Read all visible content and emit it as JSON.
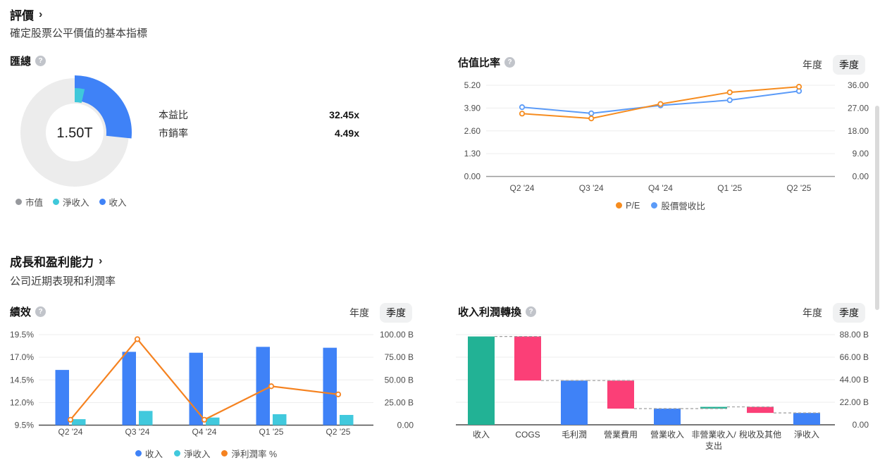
{
  "ui": {
    "help_glyph": "?",
    "tab_annual": "年度",
    "tab_quarterly": "季度",
    "active_tab": "季度"
  },
  "sections": [
    {
      "id": "valuation",
      "title": "評價",
      "chevron": "›",
      "subtitle": "確定股票公平價值的基本指標"
    },
    {
      "id": "growth",
      "title": "成長和盈利能力",
      "chevron": "›",
      "subtitle": "公司近期表現和利潤率"
    }
  ],
  "cards": {
    "summary": {
      "title": "匯總",
      "donut": {
        "center_label": "1.50T",
        "ring": {
          "name": "市值",
          "color": "#ececec"
        },
        "segments": [
          {
            "name": "收入",
            "color": "#3f82f7",
            "start_deg": 0,
            "end_deg": 96
          },
          {
            "name": "淨收入",
            "color": "#3fc8da",
            "start_deg": 0,
            "end_deg": 13
          }
        ]
      },
      "legend": [
        {
          "label": "市值",
          "color": "#97999d"
        },
        {
          "label": "淨收入",
          "color": "#3fc8da"
        },
        {
          "label": "收入",
          "color": "#3f82f7"
        }
      ],
      "metrics": [
        {
          "label": "本益比",
          "value": "32.45x"
        },
        {
          "label": "市銷率",
          "value": "4.49x"
        }
      ]
    }
  },
  "chart_data": [
    {
      "id": "valuation_ratios",
      "type": "line",
      "title": "估值比率",
      "categories": [
        "Q2 '24",
        "Q3 '24",
        "Q4 '24",
        "Q1 '25",
        "Q2 '25"
      ],
      "left_axis": {
        "min": 0,
        "max": 5.2,
        "tick_labels": [
          "5.20",
          "3.90",
          "2.60",
          "1.30",
          "0.00"
        ]
      },
      "right_axis": {
        "min": 0,
        "max": 36,
        "tick_labels": [
          "36.00",
          "27.00",
          "18.00",
          "9.00",
          "0.00"
        ]
      },
      "series": [
        {
          "name": "P/E",
          "color": "#f68c1f",
          "axis": "right",
          "values": [
            24.8,
            22.9,
            28.6,
            33.2,
            35.4
          ]
        },
        {
          "name": "股價營收比",
          "color": "#5b9bf8",
          "axis": "left",
          "values": [
            3.95,
            3.6,
            4.05,
            4.35,
            4.87
          ]
        }
      ],
      "legend_position": "bottom",
      "grid": true
    },
    {
      "id": "performance",
      "type": "bar",
      "title": "績效",
      "categories": [
        "Q2 '24",
        "Q3 '24",
        "Q4 '24",
        "Q1 '25",
        "Q2 '25"
      ],
      "left_axis": {
        "min": 9.5,
        "max": 19.5,
        "tick_labels": [
          "19.5%",
          "17.0%",
          "14.5%",
          "12.0%",
          "9.5%"
        ]
      },
      "right_axis": {
        "min": 0,
        "max": 100,
        "tick_labels": [
          "100.00 B",
          "75.00 B",
          "50.00 B",
          "25.00 B",
          "0.00"
        ]
      },
      "series": [
        {
          "name": "收入",
          "type": "bar",
          "color": "#3f82f7",
          "axis": "right",
          "values": [
            61,
            81,
            80,
            86.5,
            85.5
          ]
        },
        {
          "name": "淨收入",
          "type": "bar",
          "color": "#41c9dd",
          "axis": "right",
          "values": [
            6.6,
            15.7,
            8.4,
            12.1,
            11.3
          ]
        },
        {
          "name": "淨利潤率 %",
          "type": "line",
          "color": "#f58220",
          "axis": "left",
          "values": [
            10.1,
            19.0,
            10.1,
            13.8,
            12.9
          ]
        }
      ],
      "legend_position": "bottom",
      "grid": true
    },
    {
      "id": "profit_conversion",
      "type": "waterfall",
      "title": "收入利潤轉換",
      "unit": "B",
      "right_axis": {
        "min": 0,
        "max": 88,
        "tick_labels": [
          "88.00 B",
          "66.00 B",
          "44.00 B",
          "22.00 B",
          "0.00"
        ]
      },
      "items": [
        {
          "label": "收入",
          "value": 86.2,
          "kind": "total",
          "color": "#22b295",
          "label_lines": [
            "收入"
          ]
        },
        {
          "label": "COGS",
          "value": -43.0,
          "kind": "delta",
          "color": "#fb3f77",
          "label_lines": [
            "COGS"
          ]
        },
        {
          "label": "毛利潤",
          "value": 43.2,
          "kind": "total",
          "color": "#3f82f7",
          "label_lines": [
            "毛利潤"
          ]
        },
        {
          "label": "營業費用",
          "value": -27.4,
          "kind": "delta",
          "color": "#fb3f77",
          "label_lines": [
            "營業費用"
          ]
        },
        {
          "label": "營業收入",
          "value": 15.8,
          "kind": "total",
          "color": "#3f82f7",
          "label_lines": [
            "營業收入"
          ]
        },
        {
          "label": "非營業收入/支出",
          "value": 1.7,
          "kind": "delta",
          "color": "#22b295",
          "label_lines": [
            "非營業收入/",
            "支出"
          ]
        },
        {
          "label": "稅收及其他",
          "value": -5.9,
          "kind": "delta",
          "color": "#fb3f77",
          "label_lines": [
            "稅收及其他"
          ]
        },
        {
          "label": "淨收入",
          "value": 11.6,
          "kind": "total",
          "color": "#3f82f7",
          "label_lines": [
            "淨收入"
          ]
        }
      ],
      "grid": true
    }
  ]
}
